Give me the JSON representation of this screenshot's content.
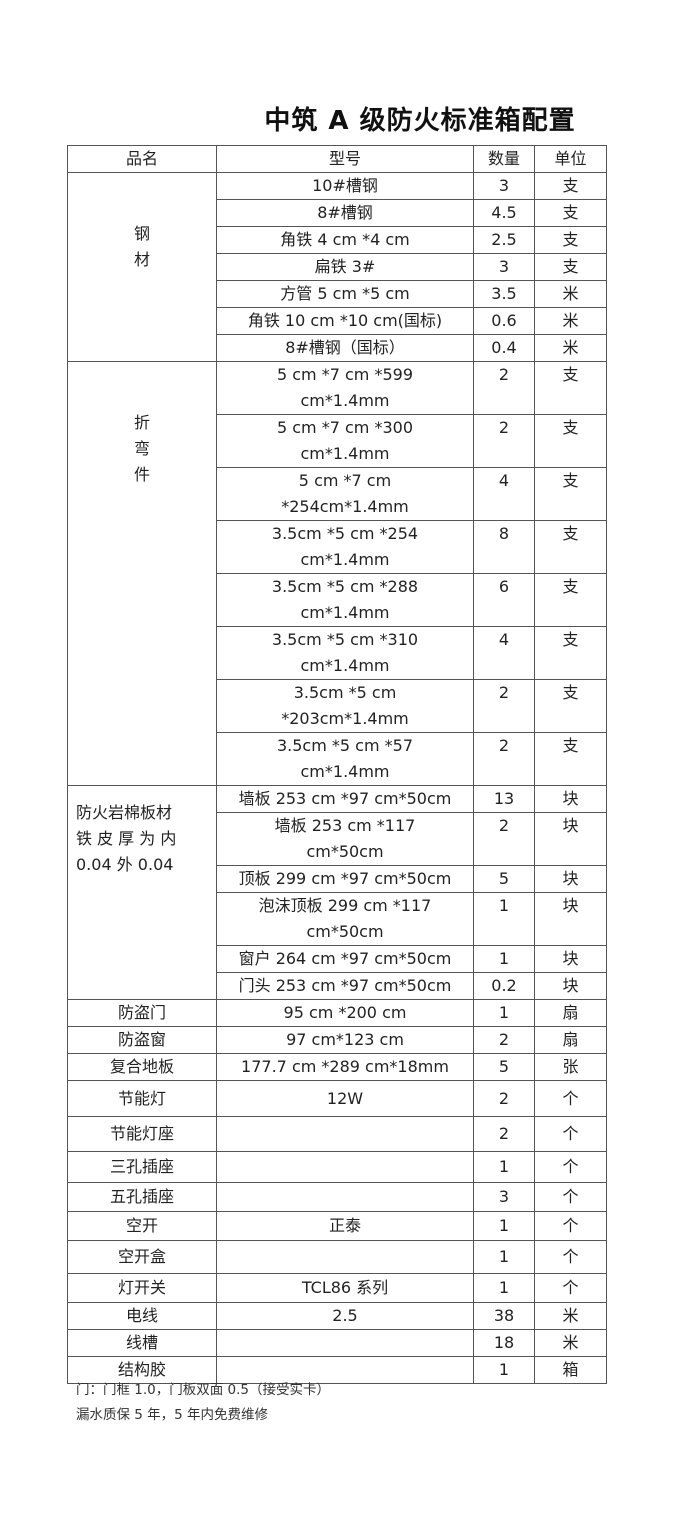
{
  "title": "中筑 A 级防火标准箱配置",
  "headers": [
    "品名",
    "型号",
    "数量",
    "单位"
  ],
  "groups": [
    {
      "name": "钢\n材",
      "align": "center",
      "rows": [
        {
          "model": "10#槽钢",
          "qty": "3",
          "unit": "支"
        },
        {
          "model": "8#槽钢",
          "qty": "4.5",
          "unit": "支"
        },
        {
          "model": "角铁 4 cm *4 cm",
          "qty": "2.5",
          "unit": "支"
        },
        {
          "model": "扁铁 3#",
          "qty": "3",
          "unit": "支"
        },
        {
          "model": "方管 5 cm *5 cm",
          "qty": "3.5",
          "unit": "米"
        },
        {
          "model": "角铁 10 cm *10 cm(国标)",
          "qty": "0.6",
          "unit": "米"
        },
        {
          "model": "8#槽钢（国标）",
          "qty": "0.4",
          "unit": "米"
        }
      ]
    },
    {
      "name": "折\n弯\n件",
      "align": "center",
      "rows": [
        {
          "model": "5 cm *7 cm *599 cm*1.4mm",
          "qty": "2",
          "unit": "支",
          "lines": 2
        },
        {
          "model": "5 cm *7 cm *300 cm*1.4mm",
          "qty": "2",
          "unit": "支",
          "lines": 2
        },
        {
          "model": "5 cm *7 cm *254cm*1.4mm",
          "qty": "4",
          "unit": "支",
          "lines": 2
        },
        {
          "model": "3.5cm *5 cm *254 cm*1.4mm",
          "qty": "8",
          "unit": "支",
          "lines": 2
        },
        {
          "model": "3.5cm *5 cm *288 cm*1.4mm",
          "qty": "6",
          "unit": "支",
          "lines": 2
        },
        {
          "model": "3.5cm *5 cm *310 cm*1.4mm",
          "qty": "4",
          "unit": "支",
          "lines": 2
        },
        {
          "model": "3.5cm *5 cm *203cm*1.4mm",
          "qty": "2",
          "unit": "支",
          "lines": 2
        },
        {
          "model": "3.5cm *5 cm *57 cm*1.4mm",
          "qty": "2",
          "unit": "支",
          "lines": 2
        }
      ]
    },
    {
      "name": "防火岩棉板材\n铁 皮 厚 为 内\n0.04 外 0.04",
      "align": "left",
      "rows": [
        {
          "model": "墙板 253 cm *97 cm*50cm",
          "qty": "13",
          "unit": "块"
        },
        {
          "model": "墙板 253 cm *117 cm*50cm",
          "qty": "2",
          "unit": "块",
          "lines": 2
        },
        {
          "model": "顶板 299 cm *97 cm*50cm",
          "qty": "5",
          "unit": "块"
        },
        {
          "model": "泡沫顶板 299 cm *117 cm*50cm",
          "qty": "1",
          "unit": "块",
          "lines": 2
        },
        {
          "model": "窗户 264 cm *97 cm*50cm",
          "qty": "1",
          "unit": "块"
        },
        {
          "model": "门头 253 cm *97 cm*50cm",
          "qty": "0.2",
          "unit": "块"
        }
      ]
    }
  ],
  "items": [
    {
      "name": "防盗门",
      "model": "95 cm *200 cm",
      "qty": "1",
      "unit": "扇"
    },
    {
      "name": "防盗窗",
      "model": "97 cm*123 cm",
      "qty": "2",
      "unit": "扇"
    },
    {
      "name": "复合地板",
      "model": "177.7 cm *289 cm*18mm",
      "qty": "5",
      "unit": "张"
    },
    {
      "name": "节能灯",
      "model": "12W",
      "qty": "2",
      "unit": "个"
    },
    {
      "name": "节能灯座",
      "model": "",
      "qty": "2",
      "unit": "个"
    },
    {
      "name": "三孔插座",
      "model": "",
      "qty": "1",
      "unit": "个"
    },
    {
      "name": "五孔插座",
      "model": "",
      "qty": "3",
      "unit": "个"
    },
    {
      "name": "空开",
      "model": "正泰",
      "qty": "1",
      "unit": "个"
    },
    {
      "name": "空开盒",
      "model": "",
      "qty": "1",
      "unit": "个"
    },
    {
      "name": "灯开关",
      "model": "TCL86 系列",
      "qty": "1",
      "unit": "个"
    },
    {
      "name": "电线",
      "model": "2.5",
      "qty": "38",
      "unit": "米"
    },
    {
      "name": "线槽",
      "model": "",
      "qty": "18",
      "unit": "米"
    },
    {
      "name": "结构胶",
      "model": "",
      "qty": "1",
      "unit": "箱"
    }
  ],
  "notes": [
    "门：门框 1.0，门板双面 0.5（接受实卡）",
    "漏水质保 5 年，5 年内免费维修"
  ]
}
